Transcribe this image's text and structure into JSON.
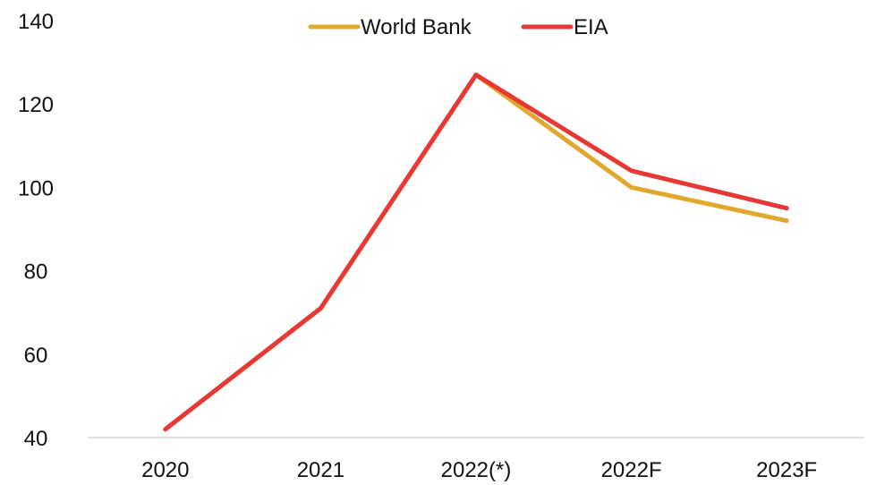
{
  "chart_data": {
    "type": "line",
    "title": "",
    "xlabel": "",
    "ylabel": "",
    "categories": [
      "2020",
      "2021",
      "2022(*)",
      "2022F",
      "2023F"
    ],
    "ylim": [
      40,
      140
    ],
    "yticks": [
      40,
      60,
      80,
      100,
      120,
      140
    ],
    "grid": false,
    "legend_position": "top",
    "series": [
      {
        "name": "World Bank",
        "color": "#E0A82E",
        "values": [
          42,
          71,
          127,
          100,
          92
        ]
      },
      {
        "name": "EIA",
        "color": "#E63834",
        "values": [
          42,
          71,
          127,
          104,
          95
        ]
      }
    ]
  }
}
